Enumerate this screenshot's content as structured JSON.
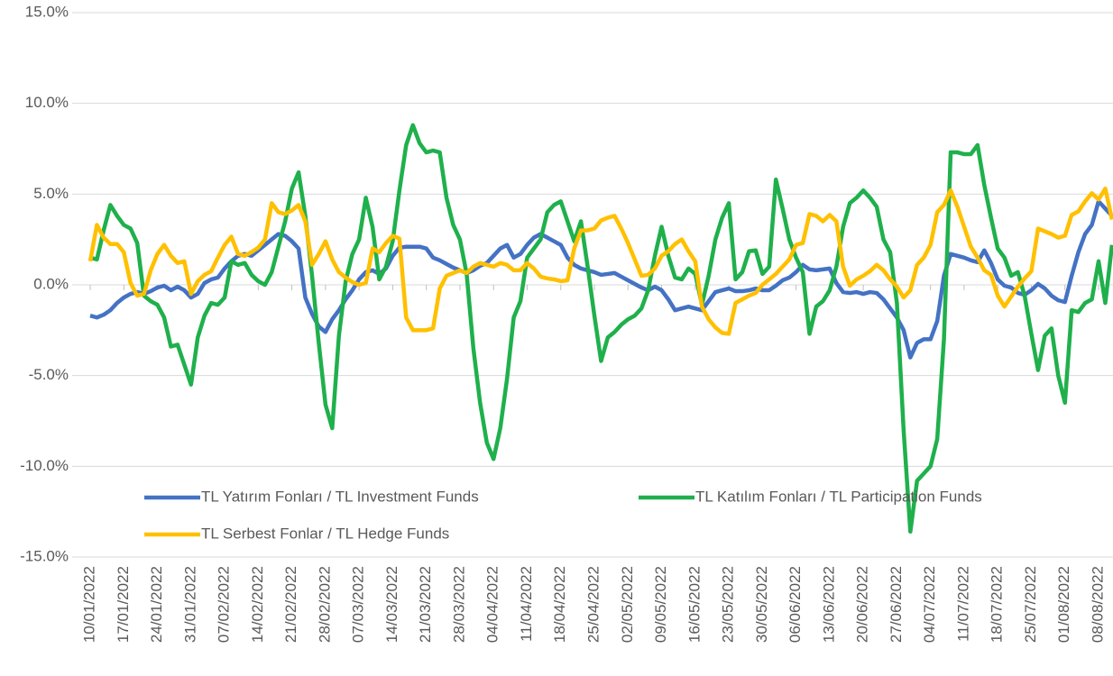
{
  "chart_data": {
    "type": "line",
    "categories": [
      "10/01/2022",
      null,
      null,
      null,
      null,
      "17/01/2022",
      null,
      null,
      null,
      null,
      "24/01/2022",
      null,
      null,
      null,
      null,
      "31/01/2022",
      null,
      null,
      null,
      null,
      "07/02/2022",
      null,
      null,
      null,
      null,
      "14/02/2022",
      null,
      null,
      null,
      null,
      "21/02/2022",
      null,
      null,
      null,
      null,
      "28/02/2022",
      null,
      null,
      null,
      null,
      "07/03/2022",
      null,
      null,
      null,
      null,
      "14/03/2022",
      null,
      null,
      null,
      null,
      "21/03/2022",
      null,
      null,
      null,
      null,
      "28/03/2022",
      null,
      null,
      null,
      null,
      "04/04/2022",
      null,
      null,
      null,
      null,
      "11/04/2022",
      null,
      null,
      null,
      null,
      "18/04/2022",
      null,
      null,
      null,
      null,
      "25/04/2022",
      null,
      null,
      null,
      null,
      "02/05/2022",
      null,
      null,
      null,
      null,
      "09/05/2022",
      null,
      null,
      null,
      null,
      "16/05/2022",
      null,
      null,
      null,
      null,
      "23/05/2022",
      null,
      null,
      null,
      null,
      "30/05/2022",
      null,
      null,
      null,
      null,
      "06/06/2022",
      null,
      null,
      null,
      null,
      "13/06/2022",
      null,
      null,
      null,
      null,
      "20/06/2022",
      null,
      null,
      null,
      null,
      "27/06/2022",
      null,
      null,
      null,
      null,
      "04/07/2022",
      null,
      null,
      null,
      null,
      "11/07/2022",
      null,
      null,
      null,
      null,
      "18/07/2022",
      null,
      null,
      null,
      null,
      "25/07/2022",
      null,
      null,
      null,
      null,
      "01/08/2022",
      null,
      null,
      null,
      null,
      "08/08/2022",
      null,
      null
    ],
    "series": [
      {
        "name": "TL Yatırım Fonları / TL Investment Funds",
        "color": "#4472c4",
        "values": [
          -1.7,
          -1.8,
          -1.65,
          -1.4,
          -1.0,
          -0.7,
          -0.5,
          -0.4,
          -0.5,
          -0.35,
          -0.15,
          -0.05,
          -0.3,
          -0.1,
          -0.3,
          -0.7,
          -0.5,
          0.1,
          0.3,
          0.4,
          0.9,
          1.3,
          1.6,
          1.7,
          1.6,
          1.9,
          2.2,
          2.5,
          2.8,
          2.7,
          2.4,
          2.0,
          -0.7,
          -1.6,
          -2.3,
          -2.6,
          -1.9,
          -1.4,
          -0.8,
          -0.3,
          0.3,
          0.7,
          0.8,
          0.6,
          0.9,
          1.6,
          2.05,
          2.1,
          2.1,
          2.1,
          2.0,
          1.5,
          1.35,
          1.15,
          0.95,
          0.8,
          0.65,
          0.8,
          1.05,
          1.2,
          1.6,
          2.0,
          2.2,
          1.5,
          1.7,
          2.2,
          2.6,
          2.8,
          2.6,
          2.4,
          2.2,
          1.5,
          1.1,
          0.9,
          0.8,
          0.7,
          0.55,
          0.6,
          0.65,
          0.45,
          0.25,
          0.05,
          -0.15,
          -0.3,
          -0.1,
          -0.3,
          -0.8,
          -1.4,
          -1.3,
          -1.2,
          -1.3,
          -1.4,
          -0.9,
          -0.4,
          -0.3,
          -0.2,
          -0.35,
          -0.35,
          -0.3,
          -0.2,
          -0.3,
          -0.3,
          -0.05,
          0.25,
          0.4,
          0.7,
          1.1,
          0.85,
          0.8,
          0.85,
          0.9,
          0.1,
          -0.4,
          -0.45,
          -0.4,
          -0.5,
          -0.4,
          -0.45,
          -0.8,
          -1.3,
          -1.8,
          -2.5,
          -4.0,
          -3.2,
          -3.0,
          -3.0,
          -2.0,
          0.5,
          1.7,
          1.6,
          1.5,
          1.35,
          1.25,
          1.9,
          1.2,
          0.3,
          -0.05,
          -0.15,
          -0.45,
          -0.55,
          -0.3,
          0.05,
          -0.2,
          -0.6,
          -0.85,
          -0.95,
          0.5,
          1.8,
          2.8,
          3.3,
          4.6,
          4.2,
          3.8
        ]
      },
      {
        "name": "TL Katılım Fonları / TL Participation Funds",
        "color": "#1fb04c",
        "values": [
          1.5,
          1.4,
          3.0,
          4.4,
          3.8,
          3.3,
          3.1,
          2.3,
          -0.6,
          -0.9,
          -1.1,
          -1.8,
          -3.4,
          -3.3,
          -4.4,
          -5.5,
          -2.9,
          -1.7,
          -1.0,
          -1.1,
          -0.7,
          1.3,
          1.1,
          1.2,
          0.55,
          0.2,
          0.0,
          0.7,
          2.1,
          3.5,
          5.3,
          6.2,
          3.8,
          0.5,
          -3.2,
          -6.6,
          -7.9,
          -2.8,
          0.2,
          1.7,
          2.5,
          4.8,
          3.2,
          0.3,
          1.0,
          2.4,
          5.2,
          7.7,
          8.8,
          7.8,
          7.3,
          7.4,
          7.3,
          4.8,
          3.3,
          2.5,
          0.6,
          -3.5,
          -6.5,
          -8.7,
          -9.6,
          -7.9,
          -5.2,
          -1.8,
          -0.9,
          1.5,
          2.0,
          2.5,
          4.0,
          4.4,
          4.6,
          3.5,
          2.4,
          3.5,
          1.0,
          -1.7,
          -4.2,
          -2.9,
          -2.6,
          -2.2,
          -1.9,
          -1.7,
          -1.3,
          -0.3,
          1.6,
          3.2,
          1.6,
          0.4,
          0.3,
          0.9,
          0.6,
          -1.1,
          0.5,
          2.5,
          3.7,
          4.5,
          0.3,
          0.7,
          1.85,
          1.9,
          0.6,
          1.0,
          5.8,
          4.2,
          2.5,
          1.5,
          0.7,
          -2.7,
          -1.2,
          -0.9,
          -0.3,
          1.0,
          3.2,
          4.5,
          4.8,
          5.2,
          4.8,
          4.3,
          2.5,
          1.8,
          -1.0,
          -8.0,
          -13.6,
          -10.8,
          -10.4,
          -10.0,
          -8.5,
          -3.0,
          7.3,
          7.3,
          7.2,
          7.2,
          7.7,
          5.5,
          3.7,
          2.0,
          1.5,
          0.5,
          0.7,
          -0.6,
          -2.7,
          -4.7,
          -2.8,
          -2.4,
          -5.0,
          -6.5,
          -1.4,
          -1.5,
          -1.0,
          -0.8,
          1.3,
          -1.0,
          2.2
        ]
      },
      {
        "name": "TL Serbest Fonlar / TL Hedge Funds",
        "color": "#ffc000",
        "values": [
          1.3,
          3.3,
          2.6,
          2.25,
          2.25,
          1.8,
          0.1,
          -0.6,
          -0.5,
          0.8,
          1.7,
          2.2,
          1.6,
          1.2,
          1.3,
          -0.5,
          0.2,
          0.55,
          0.75,
          1.5,
          2.2,
          2.65,
          1.7,
          1.6,
          1.8,
          2.05,
          2.5,
          4.5,
          4.0,
          3.9,
          4.1,
          4.4,
          3.5,
          1.1,
          1.7,
          2.4,
          1.4,
          0.7,
          0.4,
          0.15,
          0.0,
          0.1,
          2.0,
          1.8,
          2.3,
          2.7,
          2.55,
          -1.8,
          -2.5,
          -2.5,
          -2.5,
          -2.4,
          -0.2,
          0.5,
          0.65,
          0.8,
          0.65,
          1.0,
          1.2,
          1.1,
          1.0,
          1.2,
          1.1,
          0.8,
          0.8,
          1.2,
          0.9,
          0.45,
          0.35,
          0.3,
          0.2,
          0.25,
          2.0,
          3.0,
          3.0,
          3.1,
          3.55,
          3.7,
          3.8,
          3.1,
          2.3,
          1.4,
          0.5,
          0.55,
          0.9,
          1.6,
          1.85,
          2.25,
          2.5,
          1.85,
          1.3,
          -1.2,
          -1.9,
          -2.35,
          -2.65,
          -2.7,
          -1.0,
          -0.8,
          -0.6,
          -0.45,
          0.0,
          0.3,
          0.6,
          1.0,
          1.4,
          2.2,
          2.3,
          3.9,
          3.8,
          3.5,
          3.85,
          3.5,
          1.0,
          -0.05,
          0.3,
          0.5,
          0.75,
          1.1,
          0.8,
          0.3,
          -0.1,
          -0.7,
          -0.3,
          1.1,
          1.5,
          2.2,
          4.0,
          4.4,
          5.2,
          4.3,
          3.2,
          2.1,
          1.5,
          0.8,
          0.55,
          -0.6,
          -1.2,
          -0.65,
          -0.1,
          0.35,
          0.75,
          3.1,
          2.95,
          2.8,
          2.6,
          2.7,
          3.85,
          4.05,
          4.6,
          5.05,
          4.7,
          5.3,
          3.6
        ]
      }
    ],
    "ylim": [
      -15,
      15
    ],
    "yticks": [
      {
        "value": -15,
        "label": "-15.0%"
      },
      {
        "value": -10,
        "label": "-10.0%"
      },
      {
        "value": -5,
        "label": "-5.0%"
      },
      {
        "value": 0,
        "label": "0.0%"
      },
      {
        "value": 5,
        "label": "5.0%"
      },
      {
        "value": 10,
        "label": "10.0%"
      },
      {
        "value": 15,
        "label": "15.0%"
      }
    ],
    "grid": true
  }
}
